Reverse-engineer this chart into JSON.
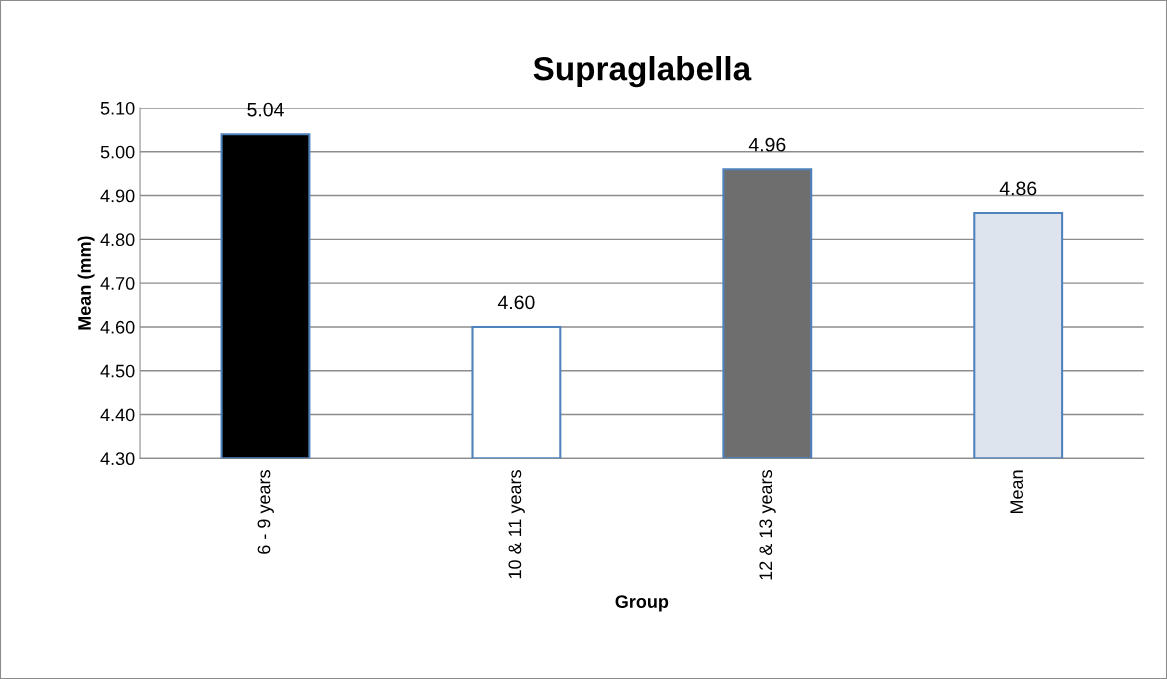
{
  "chart_data": {
    "type": "bar",
    "title": "Supraglabella",
    "xlabel": "Group",
    "ylabel": "Mean (mm)",
    "categories": [
      "6 - 9 years",
      "10 & 11 years",
      "12 & 13 years",
      "Mean"
    ],
    "values": [
      5.04,
      4.6,
      4.96,
      4.86
    ],
    "value_labels": [
      "5.04",
      "4.60",
      "4.96",
      "4.86"
    ],
    "colors": [
      "#000000",
      "#ffffff",
      "#6e6e6e",
      "#dde4ee"
    ],
    "ylim": [
      4.3,
      5.1
    ],
    "yticks": [
      {
        "value": 4.3,
        "label": "4.30"
      },
      {
        "value": 4.4,
        "label": "4.40"
      },
      {
        "value": 4.5,
        "label": "4.50"
      },
      {
        "value": 4.6,
        "label": "4.60"
      },
      {
        "value": 4.7,
        "label": "4.70"
      },
      {
        "value": 4.8,
        "label": "4.80"
      },
      {
        "value": 4.9,
        "label": "4.90"
      },
      {
        "value": 5.0,
        "label": "5.00"
      },
      {
        "value": 5.1,
        "label": "5.10"
      }
    ],
    "grid": "y",
    "legend": false
  }
}
